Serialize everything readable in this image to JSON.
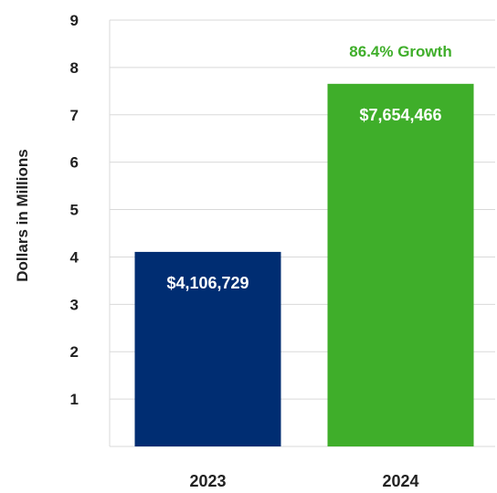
{
  "chart_data": {
    "type": "bar",
    "categories": [
      "2023",
      "2024"
    ],
    "values": [
      4.106729,
      7.654466
    ],
    "data_labels": [
      "$4,106,729",
      "$7,654,466"
    ],
    "bar_colors": [
      "#002d72",
      "#3fae2a"
    ],
    "annotation": {
      "text": "86.4% Growth",
      "color": "#3fae2a",
      "category": "2024"
    },
    "title": "",
    "xlabel": "",
    "ylabel": "Dollars in Millions",
    "ylim": [
      0,
      9
    ],
    "yticks": [
      "1",
      "2",
      "3",
      "4",
      "5",
      "6",
      "7",
      "8",
      "9"
    ],
    "grid": true,
    "gridline_color": "#d9d9d9",
    "legend": "none"
  }
}
